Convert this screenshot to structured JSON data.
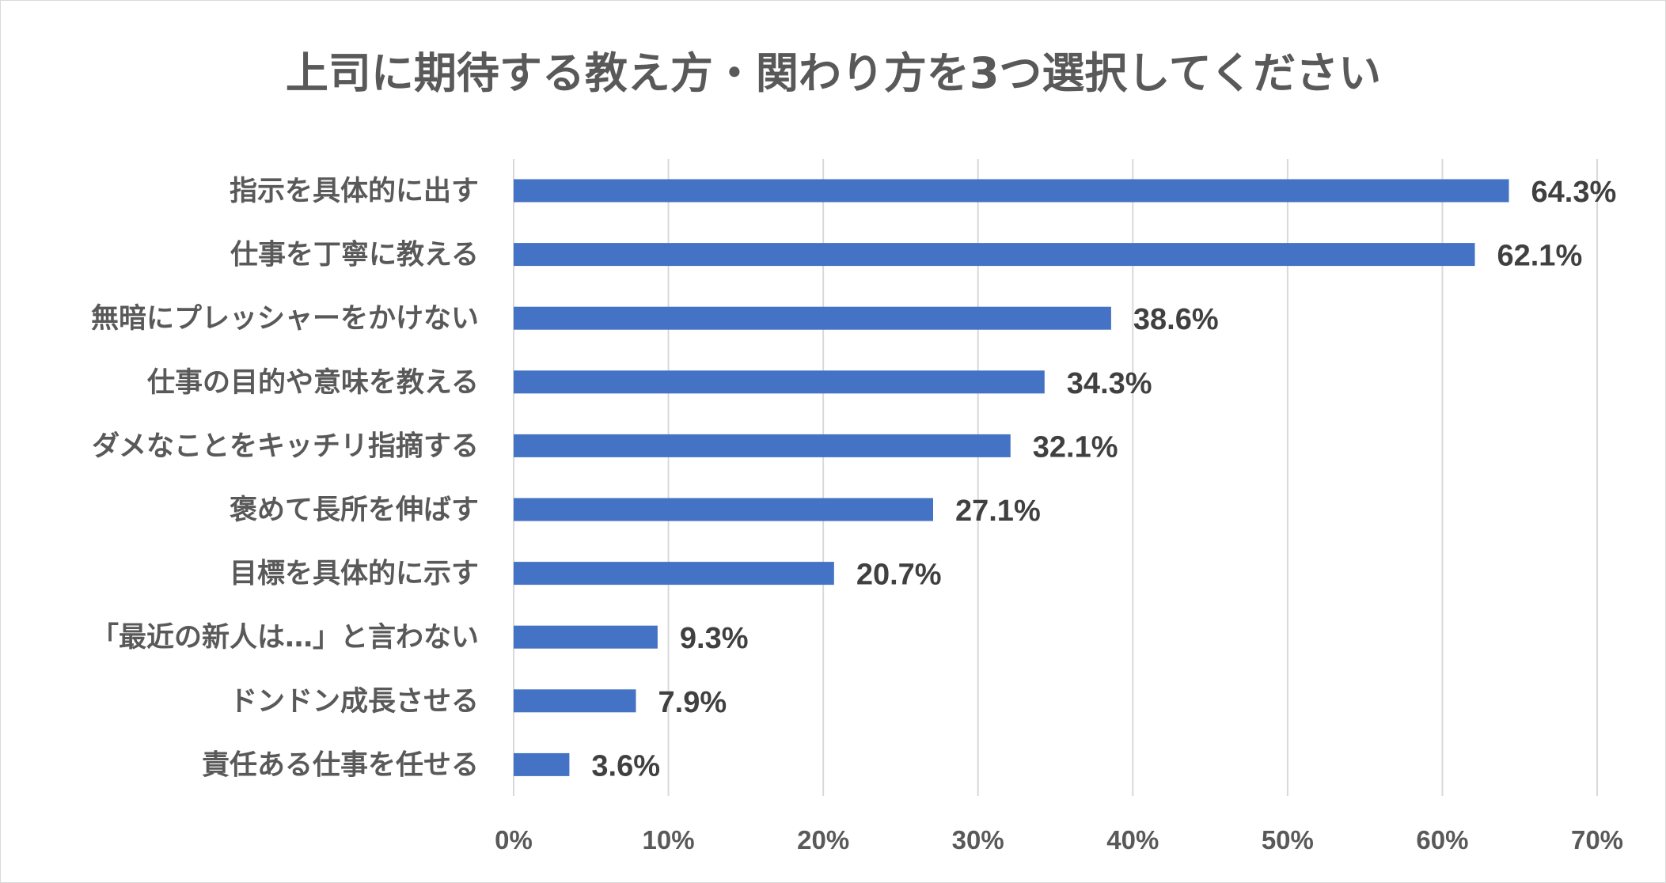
{
  "chart_data": {
    "type": "bar",
    "orientation": "horizontal",
    "title": "上司に期待する教え方・関わり方を3つ選択してください",
    "categories": [
      "指示を具体的に出す",
      "仕事を丁寧に教える",
      "無暗にプレッシャーをかけない",
      "仕事の目的や意味を教える",
      "ダメなことをキッチリ指摘する",
      "褒めて長所を伸ばす",
      "目標を具体的に示す",
      "「最近の新人は…」と言わない",
      "ドンドン成長させる",
      "責任ある仕事を任せる"
    ],
    "values": [
      64.3,
      62.1,
      38.6,
      34.3,
      32.1,
      27.1,
      20.7,
      9.3,
      7.9,
      3.6
    ],
    "data_labels": [
      "64.3%",
      "62.1%",
      "38.6%",
      "34.3%",
      "32.1%",
      "27.1%",
      "20.7%",
      "9.3%",
      "7.9%",
      "3.6%"
    ],
    "xlim": [
      0,
      70
    ],
    "x_ticks": [
      0,
      10,
      20,
      30,
      40,
      50,
      60,
      70
    ],
    "x_tick_labels": [
      "0%",
      "10%",
      "20%",
      "30%",
      "40%",
      "50%",
      "60%",
      "70%"
    ],
    "xlabel": "",
    "ylabel": "",
    "grid": "vertical",
    "legend": "none",
    "bar_color": "#4472c4"
  }
}
